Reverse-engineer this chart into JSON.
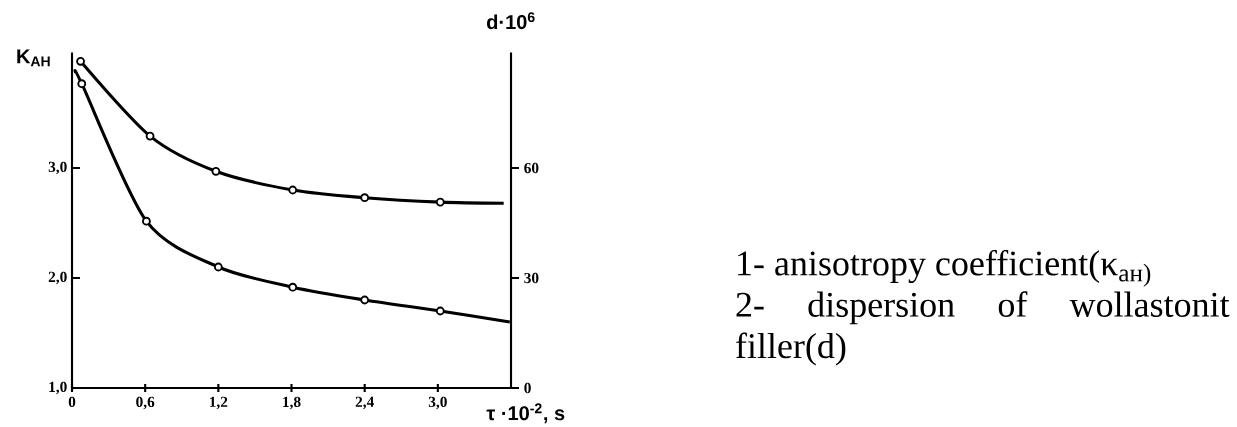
{
  "chart_data": {
    "type": "line",
    "xlabel": "τ ·10$^{-2}$, s",
    "ylabel": "K$_{AH}$",
    "y2label": "d·10$^{6}$",
    "xlim": [
      0,
      3.6
    ],
    "ylim": [
      1,
      4.05
    ],
    "y2lim": [
      0,
      91.5
    ],
    "xticks": [
      {
        "value": 0,
        "label": "0"
      },
      {
        "value": 0.6,
        "label": "0,6"
      },
      {
        "value": 1.2,
        "label": "1,2"
      },
      {
        "value": 1.8,
        "label": "1,8"
      },
      {
        "value": 2.4,
        "label": "2,4"
      },
      {
        "value": 3.0,
        "label": "3,0"
      }
    ],
    "yticks": [
      {
        "value": 1,
        "label": "1,0"
      },
      {
        "value": 2,
        "label": "2,0"
      },
      {
        "value": 3,
        "label": "3,0"
      }
    ],
    "y2ticks": [
      0,
      30,
      60
    ],
    "series": [
      {
        "axis": "y",
        "color": "#000000",
        "marker": "none",
        "x": [
          0.07,
          0.64,
          1.18,
          1.81,
          2.4,
          3.02,
          3.54
        ],
        "values": [
          3.97,
          3.29,
          2.97,
          2.8,
          2.73,
          2.69,
          2.68
        ]
      },
      {
        "type": "scatter",
        "axis": "y",
        "color": "#000000",
        "marker": "circle",
        "x": [
          0.07,
          0.64,
          1.18,
          1.81,
          2.4,
          3.02
        ],
        "values": [
          3.97,
          3.29,
          2.97,
          2.8,
          2.73,
          2.69
        ]
      },
      {
        "axis": "y2",
        "color": "#000000",
        "marker": "none",
        "x": [
          0.03,
          0.08,
          0.61,
          1.2,
          1.81,
          2.4,
          3.02,
          3.59
        ],
        "values": [
          86,
          83,
          45.5,
          33,
          27.5,
          24,
          21,
          18
        ]
      },
      {
        "type": "scatter",
        "axis": "y2",
        "color": "#000000",
        "marker": "circle",
        "x": [
          0.08,
          0.61,
          1.2,
          1.81,
          2.4,
          3.02
        ],
        "values": [
          83,
          45.5,
          33,
          27.5,
          24,
          21
        ]
      }
    ],
    "annotations": [
      "1- anisotropy coefficient(κ$_{ан)}$",
      "2- dispersion of wollastonit filler(d)"
    ]
  }
}
